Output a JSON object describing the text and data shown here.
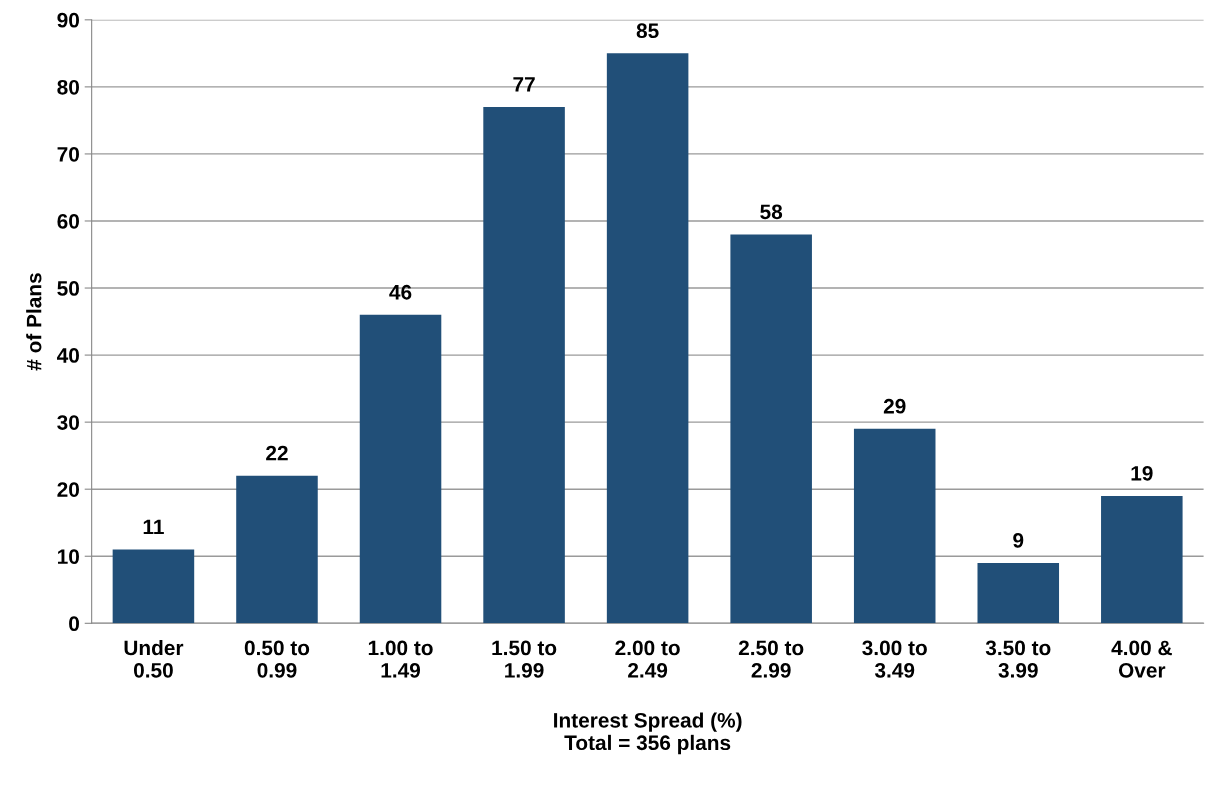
{
  "chart_data": {
    "type": "bar",
    "xlabel": "Interest Spread (%)\nTotal = 356 plans",
    "ylabel": "# of Plans",
    "categories": [
      "Under\n0.50",
      "0.50 to\n0.99",
      "1.00 to\n1.49",
      "1.50 to\n1.99",
      "2.00 to\n2.49",
      "2.50 to\n2.99",
      "3.00 to\n3.49",
      "3.50 to\n3.99",
      "4.00 &\nOver"
    ],
    "values": [
      11,
      22,
      46,
      77,
      85,
      58,
      29,
      9,
      19
    ],
    "color": "#214f78",
    "ylim": [
      0,
      90
    ],
    "yticks": [
      0,
      10,
      20,
      30,
      40,
      50,
      60,
      70,
      80,
      90
    ],
    "grid": "y",
    "data_labels": true
  }
}
